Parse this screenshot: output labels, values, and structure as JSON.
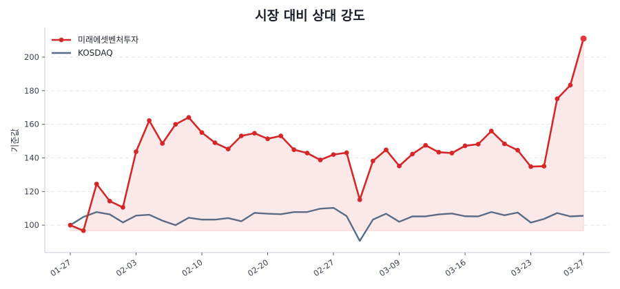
{
  "chart_data": {
    "type": "line",
    "title": "시장 대비 상대 강도",
    "xlabel": "",
    "ylabel": "기준값",
    "ylim": [
      83.7,
      217.6
    ],
    "yticks": [
      100,
      120,
      140,
      160,
      180,
      200
    ],
    "grid": true,
    "legend_position": "upper left",
    "xtick_labels": [
      {
        "index": 0,
        "label": "01-27"
      },
      {
        "index": 5,
        "label": "02-03"
      },
      {
        "index": 10,
        "label": "02-10"
      },
      {
        "index": 15,
        "label": "02-20"
      },
      {
        "index": 20,
        "label": "02-27"
      },
      {
        "index": 25,
        "label": "03-09"
      },
      {
        "index": 30,
        "label": "03-16"
      },
      {
        "index": 35,
        "label": "03-23"
      },
      {
        "index": 39,
        "label": "03-27"
      }
    ],
    "series": [
      {
        "name": "미래에셋벤처투자",
        "color": "#d62728",
        "markers": true,
        "fill": true,
        "values": [
          100.0,
          96.7,
          124.5,
          114.3,
          110.6,
          143.7,
          162.2,
          148.6,
          160.0,
          164.1,
          155.1,
          149.0,
          145.3,
          153.1,
          154.7,
          151.4,
          153.1,
          144.9,
          142.9,
          138.8,
          142.0,
          143.1,
          115.1,
          138.2,
          144.8,
          135.2,
          142.3,
          147.5,
          143.4,
          142.9,
          147.2,
          148.2,
          156.0,
          148.4,
          144.6,
          134.8,
          135.1,
          175.2,
          183.3,
          211.0
        ]
      },
      {
        "name": "KOSDAQ",
        "color": "#5a6b85",
        "markers": false,
        "fill": false,
        "values": [
          100.0,
          104.9,
          107.8,
          106.4,
          101.6,
          105.7,
          106.2,
          102.7,
          100.0,
          104.4,
          103.3,
          103.3,
          104.2,
          102.3,
          107.3,
          106.8,
          106.5,
          107.8,
          107.8,
          109.8,
          110.3,
          105.4,
          90.6,
          103.3,
          106.8,
          102.0,
          105.2,
          105.2,
          106.4,
          106.9,
          105.3,
          105.2,
          107.8,
          105.9,
          107.5,
          101.5,
          103.7,
          107.2,
          105.2,
          105.6
        ]
      }
    ]
  },
  "colors": {
    "fill": "#fbe9e9",
    "grid": "#e6e6e6",
    "axis": "#c9ced8"
  }
}
